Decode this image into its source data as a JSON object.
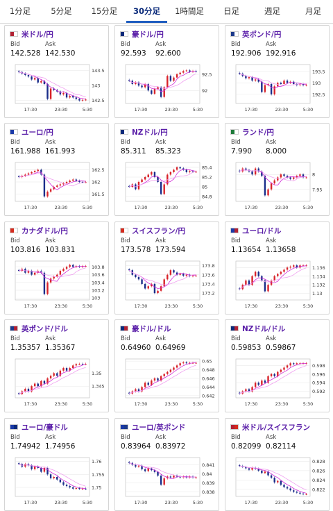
{
  "tabs": [
    {
      "label": "1分足"
    },
    {
      "label": "5分足"
    },
    {
      "label": "15分足"
    },
    {
      "label": "30分足"
    },
    {
      "label": "1時間足"
    },
    {
      "label": "日足"
    },
    {
      "label": "週足"
    },
    {
      "label": "月足"
    }
  ],
  "active_tab": 3,
  "labels": {
    "bid": "Bid",
    "ask": "Ask"
  },
  "x_ticks": [
    "17:30",
    "23:30",
    "5:30"
  ],
  "colors": {
    "up": "#d8232a",
    "down": "#1a2d8a",
    "ma": "#d22ad8",
    "ma2": "#f0a0f0",
    "accent": "#5a1ea8"
  },
  "cards": [
    {
      "pair": "米ドル/円",
      "flag": "us-jp",
      "bid": "142.528",
      "ask": "142.530",
      "y_ticks": [
        "143.5",
        "143",
        "142.5"
      ],
      "y_range": [
        142.4,
        143.7
      ],
      "closes": [
        143.45,
        143.4,
        143.35,
        143.3,
        143.2,
        143.25,
        143.1,
        143.15,
        143.05,
        142.55,
        142.9,
        142.85,
        142.8,
        142.7,
        142.75,
        142.6,
        142.65,
        142.6,
        142.55,
        142.5,
        142.52,
        142.53
      ]
    },
    {
      "pair": "豪ドル/円",
      "flag": "au-jp",
      "bid": "92.593",
      "ask": "92.600",
      "y_ticks": [
        "92.5",
        "92"
      ],
      "y_range": [
        91.6,
        92.8
      ],
      "closes": [
        92.3,
        92.2,
        92.25,
        92.15,
        92.1,
        92.2,
        92.0,
        91.9,
        92.05,
        92.1,
        91.8,
        92.1,
        92.45,
        92.3,
        92.4,
        92.5,
        92.55,
        92.6,
        92.62,
        92.58,
        92.6,
        92.59
      ]
    },
    {
      "pair": "英ポンド/円",
      "flag": "gb-jp",
      "bid": "192.906",
      "ask": "192.916",
      "y_ticks": [
        "193.5",
        "193",
        "192.5"
      ],
      "y_range": [
        192.1,
        193.8
      ],
      "closes": [
        193.4,
        193.3,
        193.2,
        193.25,
        193.1,
        193.15,
        193.05,
        192.6,
        192.9,
        192.95,
        192.5,
        192.85,
        193.0,
        192.95,
        193.1,
        193.0,
        193.05,
        192.95,
        192.9,
        192.95,
        192.9,
        192.91
      ]
    },
    {
      "pair": "ユーロ/円",
      "flag": "eu-jp",
      "bid": "161.988",
      "ask": "161.993",
      "y_ticks": [
        "162.5",
        "162",
        "161.5"
      ],
      "y_range": [
        161.2,
        162.8
      ],
      "closes": [
        162.2,
        162.25,
        162.3,
        162.35,
        162.4,
        162.45,
        162.5,
        162.3,
        161.4,
        161.6,
        161.7,
        161.8,
        161.85,
        161.9,
        161.95,
        162.0,
        162.05,
        162.1,
        162.05,
        162.0,
        161.99,
        161.99
      ]
    },
    {
      "pair": "NZドル/円",
      "flag": "nz-jp",
      "bid": "85.311",
      "ask": "85.323",
      "y_ticks": [
        "85.4",
        "85.2",
        "85",
        "84.8"
      ],
      "y_range": [
        84.7,
        85.5
      ],
      "closes": [
        85.0,
        85.05,
        84.95,
        85.1,
        85.15,
        85.2,
        85.25,
        85.3,
        85.2,
        85.1,
        84.85,
        85.05,
        85.25,
        85.3,
        85.35,
        85.4,
        85.38,
        85.35,
        85.3,
        85.32,
        85.31,
        85.31
      ]
    },
    {
      "pair": "ランド/円",
      "flag": "za-jp",
      "bid": "7.990",
      "ask": "8.000",
      "y_ticks": [
        "8",
        "7.95"
      ],
      "y_range": [
        7.91,
        8.04
      ],
      "closes": [
        8.01,
        8.02,
        8.015,
        8.01,
        8.0,
        8.02,
        8.01,
        7.995,
        7.93,
        7.95,
        7.97,
        7.98,
        7.99,
        8.0,
        7.995,
        7.99,
        7.985,
        7.99,
        7.995,
        8.0,
        7.99,
        7.99
      ]
    },
    {
      "pair": "カナダドル/円",
      "flag": "ca-jp",
      "bid": "103.816",
      "ask": "103.831",
      "y_ticks": [
        "103.8",
        "103.6",
        "103.4",
        "103.2",
        "103"
      ],
      "y_range": [
        102.95,
        103.95
      ],
      "closes": [
        103.7,
        103.75,
        103.65,
        103.7,
        103.6,
        103.65,
        103.7,
        103.65,
        103.1,
        103.4,
        103.5,
        103.55,
        103.6,
        103.7,
        103.75,
        103.8,
        103.85,
        103.8,
        103.82,
        103.8,
        103.82,
        103.82
      ]
    },
    {
      "pair": "スイスフラン/円",
      "flag": "ch-jp",
      "bid": "173.578",
      "ask": "173.594",
      "y_ticks": [
        "173.8",
        "173.6",
        "173.4",
        "173.2"
      ],
      "y_range": [
        173.05,
        173.9
      ],
      "closes": [
        173.7,
        173.6,
        173.55,
        173.5,
        173.4,
        173.3,
        173.35,
        173.4,
        173.2,
        173.25,
        173.35,
        173.5,
        173.6,
        173.7,
        173.65,
        173.6,
        173.62,
        173.58,
        173.6,
        173.57,
        173.58,
        173.58
      ]
    },
    {
      "pair": "ユーロ/ドル",
      "flag": "eu-us",
      "bid": "1.13654",
      "ask": "1.13658",
      "y_ticks": [
        "1.136",
        "1.134",
        "1.132",
        "1.13"
      ],
      "y_range": [
        1.1285,
        1.1375
      ],
      "closes": [
        1.131,
        1.132,
        1.133,
        1.132,
        1.134,
        1.135,
        1.134,
        1.133,
        1.1305,
        1.132,
        1.133,
        1.134,
        1.1345,
        1.135,
        1.1355,
        1.136,
        1.1362,
        1.1365,
        1.136,
        1.1365,
        1.1365,
        1.1365
      ]
    },
    {
      "pair": "英ポンド/ドル",
      "flag": "gb-us",
      "bid": "1.35357",
      "ask": "1.35367",
      "y_ticks": [
        "1.35",
        "1.345"
      ],
      "y_range": [
        1.3405,
        1.3555
      ],
      "closes": [
        1.342,
        1.343,
        1.344,
        1.343,
        1.345,
        1.346,
        1.345,
        1.347,
        1.346,
        1.348,
        1.349,
        1.35,
        1.349,
        1.351,
        1.352,
        1.351,
        1.352,
        1.353,
        1.3535,
        1.3536,
        1.3535,
        1.3536
      ]
    },
    {
      "pair": "豪ドル/ドル",
      "flag": "au-us",
      "bid": "0.64960",
      "ask": "0.64969",
      "y_ticks": [
        "0.65",
        "0.648",
        "0.646",
        "0.644",
        "0.642"
      ],
      "y_range": [
        0.6415,
        0.6505
      ],
      "closes": [
        0.6425,
        0.643,
        0.6435,
        0.643,
        0.644,
        0.645,
        0.6445,
        0.6455,
        0.646,
        0.6455,
        0.6465,
        0.647,
        0.6475,
        0.648,
        0.6485,
        0.649,
        0.6495,
        0.6497,
        0.6495,
        0.6496,
        0.6496,
        0.6496
      ]
    },
    {
      "pair": "NZドル/ドル",
      "flag": "nz-us",
      "bid": "0.59853",
      "ask": "0.59867",
      "y_ticks": [
        "0.598",
        "0.596",
        "0.594",
        "0.592"
      ],
      "y_range": [
        0.5905,
        0.5995
      ],
      "closes": [
        0.5915,
        0.592,
        0.5925,
        0.592,
        0.593,
        0.594,
        0.5935,
        0.5945,
        0.594,
        0.5955,
        0.596,
        0.5955,
        0.5965,
        0.597,
        0.5975,
        0.598,
        0.5985,
        0.5983,
        0.5985,
        0.5985,
        0.5985,
        0.5985
      ]
    },
    {
      "pair": "ユーロ/豪ドル",
      "flag": "eu-au",
      "bid": "1.74942",
      "ask": "1.74956",
      "y_ticks": [
        "1.76",
        "1.755",
        "1.75"
      ],
      "y_range": [
        1.7465,
        1.7615
      ],
      "closes": [
        1.759,
        1.758,
        1.759,
        1.7585,
        1.757,
        1.758,
        1.7575,
        1.756,
        1.7575,
        1.755,
        1.7535,
        1.754,
        1.753,
        1.752,
        1.751,
        1.7505,
        1.75,
        1.7495,
        1.7497,
        1.7494,
        1.7495,
        1.7494
      ]
    },
    {
      "pair": "ユーロ/英ポンド",
      "flag": "eu-gb",
      "bid": "0.83964",
      "ask": "0.83972",
      "y_ticks": [
        "0.841",
        "0.84",
        "0.839",
        "0.838"
      ],
      "y_range": [
        0.8375,
        0.8418
      ],
      "closes": [
        0.8412,
        0.841,
        0.8408,
        0.8409,
        0.8405,
        0.8403,
        0.8406,
        0.8404,
        0.8402,
        0.8398,
        0.8388,
        0.8395,
        0.8397,
        0.8396,
        0.8398,
        0.8397,
        0.8396,
        0.8397,
        0.8396,
        0.8397,
        0.8396,
        0.8396
      ]
    },
    {
      "pair": "米ドル/スイスフラン",
      "flag": "us-ch",
      "bid": "0.82099",
      "ask": "0.82114",
      "y_ticks": [
        "0.828",
        "0.826",
        "0.824",
        "0.822"
      ],
      "y_range": [
        0.8205,
        0.8288
      ],
      "closes": [
        0.827,
        0.8268,
        0.8265,
        0.8262,
        0.8266,
        0.8264,
        0.826,
        0.8255,
        0.8258,
        0.825,
        0.8245,
        0.8235,
        0.8238,
        0.823,
        0.8225,
        0.8222,
        0.8218,
        0.8215,
        0.8213,
        0.8211,
        0.821,
        0.821
      ]
    }
  ]
}
